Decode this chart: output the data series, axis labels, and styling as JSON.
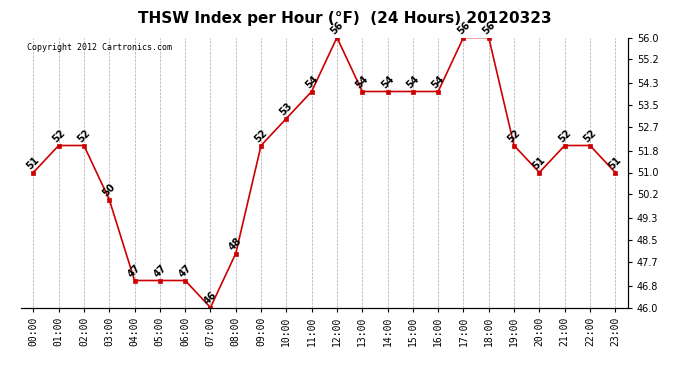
{
  "title": "THSW Index per Hour (°F)  (24 Hours) 20120323",
  "copyright": "Copyright 2012 Cartronics.com",
  "hours": [
    "00:00",
    "01:00",
    "02:00",
    "03:00",
    "04:00",
    "05:00",
    "06:00",
    "07:00",
    "08:00",
    "09:00",
    "10:00",
    "11:00",
    "12:00",
    "13:00",
    "14:00",
    "15:00",
    "16:00",
    "17:00",
    "18:00",
    "19:00",
    "20:00",
    "21:00",
    "22:00",
    "23:00"
  ],
  "values": [
    51,
    52,
    52,
    50,
    47,
    47,
    47,
    46,
    48,
    52,
    53,
    54,
    56,
    54,
    54,
    54,
    54,
    56,
    56,
    52,
    51,
    52,
    52,
    51
  ],
  "ylim": [
    46.0,
    56.0
  ],
  "yticks": [
    46.0,
    46.8,
    47.7,
    48.5,
    49.3,
    50.2,
    51.0,
    51.8,
    52.7,
    53.5,
    54.3,
    55.2,
    56.0
  ],
  "line_color": "#cc0000",
  "marker_color": "#cc0000",
  "bg_color": "#ffffff",
  "grid_color": "#aaaaaa",
  "title_fontsize": 11,
  "label_fontsize": 7,
  "annotation_fontsize": 7,
  "copyright_fontsize": 6
}
